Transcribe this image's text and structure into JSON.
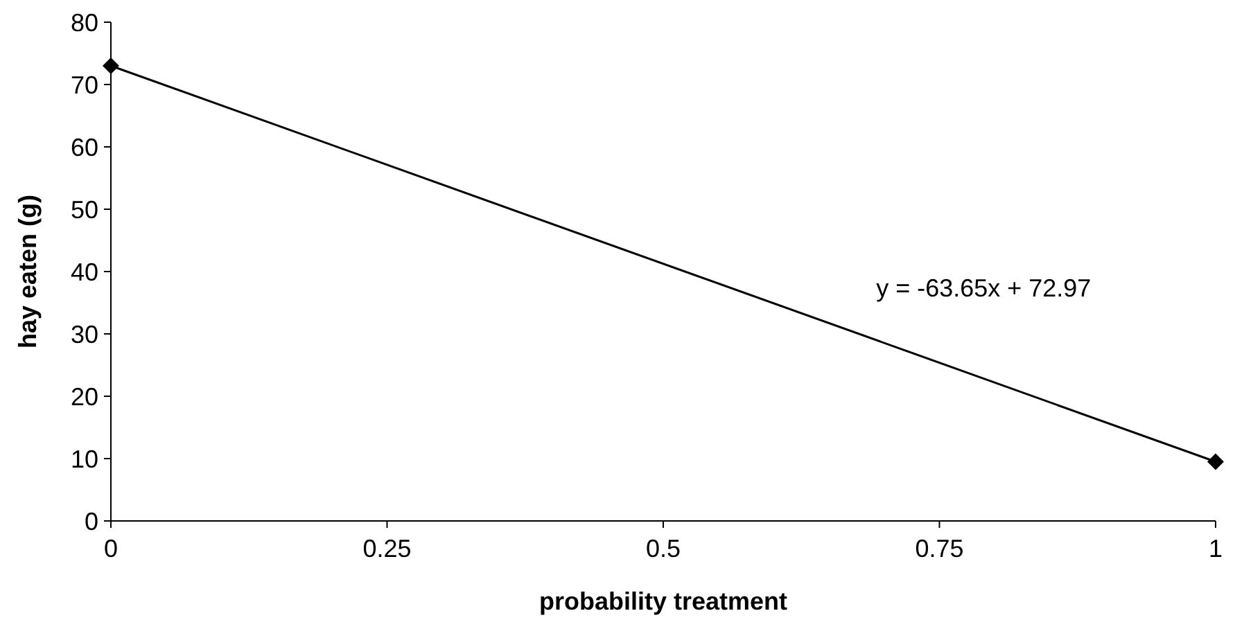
{
  "chart_data": {
    "type": "line",
    "xlabel": "probability treatment",
    "ylabel": "hay eaten (g)",
    "x": [
      0,
      1
    ],
    "series": [
      {
        "color": "#000000",
        "values": [
          73,
          9.5
        ]
      }
    ],
    "xlim": [
      0,
      1
    ],
    "xticks": [
      0,
      0.25,
      0.5,
      0.75,
      1
    ],
    "ylim": [
      0,
      80
    ],
    "yticks": [
      0,
      10,
      20,
      30,
      40,
      50,
      60,
      70,
      80
    ],
    "marker": "diamond",
    "line_style": "solid",
    "grid": false,
    "annotations": [
      "y = -63.65x + 72.97"
    ]
  }
}
